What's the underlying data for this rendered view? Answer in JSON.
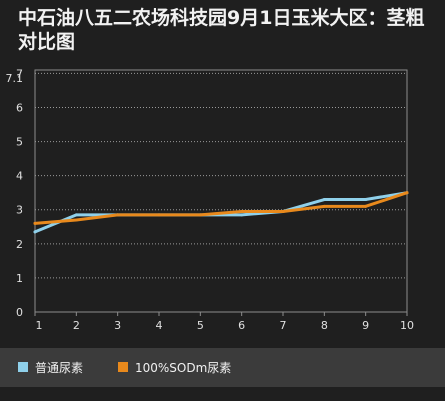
{
  "chart_data": {
    "type": "line",
    "title": "中石油八五二农场科技园9月1日玉米大区：茎粗对比图",
    "x": [
      1,
      2,
      3,
      4,
      5,
      6,
      7,
      8,
      9,
      10
    ],
    "y_ticks": [
      "0",
      "1",
      "2",
      "3",
      "4",
      "5",
      "6",
      "7",
      "7.1"
    ],
    "ylim": [
      0,
      7.1
    ],
    "grid": true,
    "legend_position": "bottom",
    "series": [
      {
        "name": "普通尿素",
        "color": "#8fd0ea",
        "values": [
          2.35,
          2.85,
          2.85,
          2.85,
          2.85,
          2.85,
          2.95,
          3.3,
          3.3,
          3.5
        ]
      },
      {
        "name": "100%SODm尿素",
        "color": "#e8891c",
        "values": [
          2.6,
          2.7,
          2.85,
          2.85,
          2.85,
          2.95,
          2.95,
          3.1,
          3.1,
          3.5
        ]
      }
    ]
  }
}
